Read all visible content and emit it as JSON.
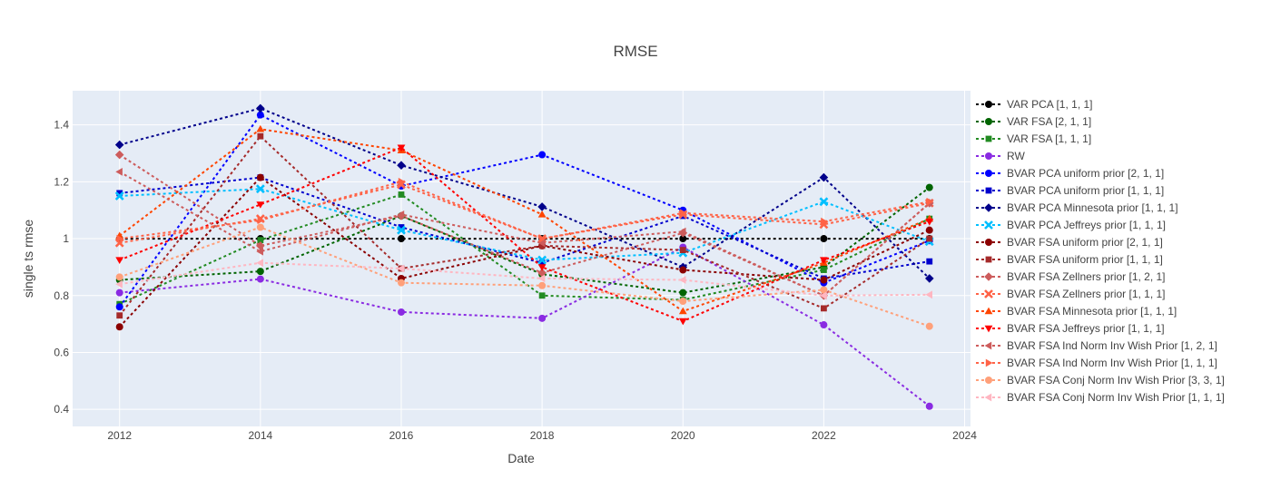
{
  "chart_data": {
    "type": "line",
    "title": "RMSE",
    "xlabel": "Date",
    "ylabel": "single ts rmse",
    "x_ticks": [
      "2012",
      "2014",
      "2016",
      "2018",
      "2020",
      "2022",
      "2024"
    ],
    "y_ticks": [
      "0.4",
      "0.6",
      "0.8",
      "1",
      "1.2",
      "1.4"
    ],
    "x": [
      "2012",
      "2014",
      "2016",
      "2018",
      "2020",
      "2022",
      "2023-07"
    ],
    "xlim": [
      "2011-05",
      "2024-02"
    ],
    "ylim": [
      0.34,
      1.52
    ],
    "grid": true,
    "legend_position": "right",
    "series": [
      {
        "name": "VAR PCA [1, 1, 1]",
        "color": "#000000",
        "marker": "circle",
        "values": [
          1.0,
          1.0,
          1.0,
          1.0,
          1.0,
          1.0,
          1.0
        ]
      },
      {
        "name": "VAR FSA [2, 1, 1]",
        "color": "#006400",
        "marker": "circle",
        "values": [
          0.855,
          0.885,
          1.08,
          0.875,
          0.81,
          0.9,
          1.18
        ]
      },
      {
        "name": "VAR FSA [1, 1, 1]",
        "color": "#228b22",
        "marker": "square",
        "values": [
          0.77,
          0.995,
          1.155,
          0.8,
          0.785,
          0.89,
          1.07
        ]
      },
      {
        "name": "RW",
        "color": "#8a2be2",
        "marker": "circle",
        "values": [
          0.81,
          0.858,
          0.742,
          0.72,
          0.97,
          0.697,
          0.411
        ]
      },
      {
        "name": "BVAR PCA uniform prior [2, 1, 1]",
        "color": "#0000ff",
        "marker": "circle",
        "values": [
          0.76,
          1.435,
          1.185,
          1.295,
          1.1,
          0.845,
          0.993
        ]
      },
      {
        "name": "BVAR PCA uniform prior [1, 1, 1]",
        "color": "#0000cd",
        "marker": "square",
        "values": [
          1.16,
          1.215,
          1.04,
          0.915,
          1.08,
          0.86,
          0.92
        ]
      },
      {
        "name": "BVAR PCA Minnesota prior [1, 1, 1]",
        "color": "#00008b",
        "marker": "diamond",
        "values": [
          1.33,
          1.458,
          1.258,
          1.112,
          0.9,
          1.215,
          0.86
        ]
      },
      {
        "name": "BVAR PCA Jeffreys prior [1, 1, 1]",
        "color": "#00bfff",
        "marker": "x",
        "values": [
          1.15,
          1.175,
          1.03,
          0.925,
          0.95,
          1.13,
          0.99
        ]
      },
      {
        "name": "BVAR FSA uniform prior [2, 1, 1]",
        "color": "#8b0000",
        "marker": "circle",
        "values": [
          0.69,
          1.215,
          0.86,
          0.975,
          0.89,
          0.855,
          1.03
        ]
      },
      {
        "name": "BVAR FSA uniform prior [1, 1, 1]",
        "color": "#a52a2a",
        "marker": "square",
        "values": [
          0.73,
          1.36,
          0.895,
          0.975,
          0.96,
          0.755,
          1.0
        ]
      },
      {
        "name": "BVAR FSA Zellners prior [1, 2, 1]",
        "color": "#cd5c5c",
        "marker": "diamond",
        "values": [
          1.295,
          0.975,
          1.08,
          0.88,
          1.02,
          0.8,
          1.125
        ]
      },
      {
        "name": "BVAR FSA Zellners prior [1, 1, 1]",
        "color": "#ff6347",
        "marker": "x",
        "values": [
          0.985,
          1.07,
          1.19,
          1.0,
          1.085,
          1.05,
          1.125
        ]
      },
      {
        "name": "BVAR FSA Minnesota prior [1, 1, 1]",
        "color": "#ff4500",
        "marker": "triangle-up",
        "values": [
          1.01,
          1.385,
          1.31,
          1.085,
          0.745,
          0.915,
          1.07
        ]
      },
      {
        "name": "BVAR FSA Jeffreys prior [1, 1, 1]",
        "color": "#ff0000",
        "marker": "triangle-down",
        "values": [
          0.925,
          1.12,
          1.32,
          0.9,
          0.71,
          0.925,
          1.06
        ]
      },
      {
        "name": "BVAR FSA Ind Norm Inv Wish Prior [1, 2, 1]",
        "color": "#cd5c5c",
        "marker": "triangle-left",
        "values": [
          1.235,
          0.955,
          1.085,
          0.985,
          1.025,
          0.8,
          1.125
        ]
      },
      {
        "name": "BVAR FSA Ind Norm Inv Wish Prior [1, 1, 1]",
        "color": "#ff6347",
        "marker": "triangle-right",
        "values": [
          1.0,
          1.065,
          1.2,
          1.0,
          1.09,
          1.06,
          1.13
        ]
      },
      {
        "name": "BVAR FSA Conj Norm Inv Wish Prior [3, 3, 1]",
        "color": "#ffa07a",
        "marker": "circle",
        "values": [
          0.865,
          1.04,
          0.845,
          0.835,
          0.78,
          0.82,
          0.692
        ]
      },
      {
        "name": "BVAR FSA Conj Norm Inv Wish Prior [1, 1, 1]",
        "color": "#ffb6c1",
        "marker": "triangle-left",
        "values": [
          0.84,
          0.915,
          0.895,
          0.86,
          0.855,
          0.8,
          0.803
        ]
      }
    ]
  },
  "colors": {
    "plot_background": "#e5ecf6",
    "grid": "#ffffff",
    "text": "#444444"
  }
}
